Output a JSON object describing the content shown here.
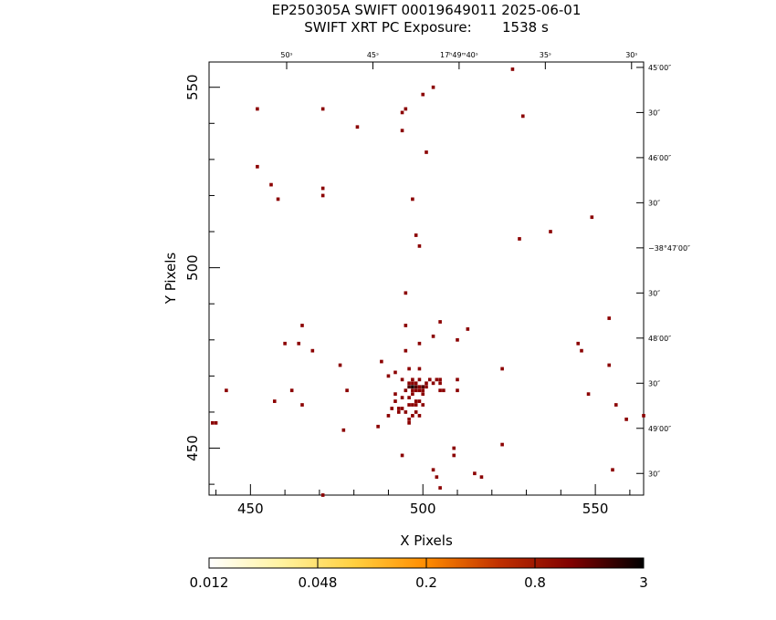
{
  "chart_data": {
    "type": "heatmap",
    "title": "EP250305A SWIFT 00019649011 2025-06-01",
    "subtitle": "SWIFT XRT PC Exposure:       1538 s",
    "xlabel": "X Pixels",
    "ylabel": "Y Pixels",
    "xlim": [
      438,
      564
    ],
    "ylim": [
      437,
      557
    ],
    "x_ticks": [
      450,
      500,
      550
    ],
    "y_ticks": [
      450,
      500,
      550
    ],
    "ra_axis_labels": [
      {
        "label": "50ˢ",
        "x": 460.5
      },
      {
        "label": "45ˢ",
        "x": 485.5
      },
      {
        "label": "17ʰ49ᵐ40ˢ",
        "x": 510.5
      },
      {
        "label": "35ˢ",
        "x": 535.5
      },
      {
        "label": "30ˢ",
        "x": 560.5
      }
    ],
    "dec_axis_labels": [
      {
        "label": "45′00″",
        "y": 555.5
      },
      {
        "label": "30″",
        "y": 543.0
      },
      {
        "label": "46′00″",
        "y": 530.5
      },
      {
        "label": "30″",
        "y": 518.0
      },
      {
        "label": "−38°47′00″",
        "y": 505.5
      },
      {
        "label": "30″",
        "y": 493.0
      },
      {
        "label": "48′00″",
        "y": 480.5
      },
      {
        "label": "30″",
        "y": 468.0
      },
      {
        "label": "49′00″",
        "y": 455.5
      },
      {
        "label": "30″",
        "y": 443.0
      }
    ],
    "colorbar": {
      "tick_labels": [
        "0.012",
        "0.048",
        "0.2",
        "0.8",
        "3"
      ],
      "colors": [
        "#ffffff",
        "#fff3a0",
        "#ffd040",
        "#ff8c00",
        "#c03000",
        "#800000",
        "#000000"
      ]
    },
    "pixel_colors": {
      "1": "#8b0000",
      "2": "#4d0000",
      "3": "#1a0000"
    },
    "pixels": [
      [
        526,
        555,
        1
      ],
      [
        503,
        550,
        1
      ],
      [
        500,
        548,
        1
      ],
      [
        452,
        544,
        1
      ],
      [
        471,
        544,
        1
      ],
      [
        495,
        544,
        1
      ],
      [
        494,
        543,
        1
      ],
      [
        529,
        542,
        1
      ],
      [
        481,
        539,
        1
      ],
      [
        494,
        538,
        1
      ],
      [
        501,
        532,
        1
      ],
      [
        452,
        528,
        1
      ],
      [
        456,
        523,
        1
      ],
      [
        471,
        522,
        1
      ],
      [
        471,
        520,
        1
      ],
      [
        458,
        519,
        1
      ],
      [
        497,
        519,
        1
      ],
      [
        537,
        510,
        1
      ],
      [
        528,
        508,
        1
      ],
      [
        498,
        509,
        1
      ],
      [
        499,
        506,
        1
      ],
      [
        549,
        514,
        1
      ],
      [
        495,
        493,
        1
      ],
      [
        505,
        485,
        1
      ],
      [
        495,
        484,
        1
      ],
      [
        465,
        484,
        1
      ],
      [
        513,
        483,
        1
      ],
      [
        554,
        486,
        1
      ],
      [
        503,
        481,
        1
      ],
      [
        499,
        479,
        1
      ],
      [
        460,
        479,
        1
      ],
      [
        464,
        479,
        1
      ],
      [
        510,
        480,
        1
      ],
      [
        545,
        479,
        1
      ],
      [
        546,
        477,
        1
      ],
      [
        468,
        477,
        1
      ],
      [
        495,
        477,
        1
      ],
      [
        488,
        474,
        1
      ],
      [
        476,
        473,
        1
      ],
      [
        554,
        473,
        1
      ],
      [
        523,
        472,
        1
      ],
      [
        492,
        471,
        1
      ],
      [
        496,
        472,
        1
      ],
      [
        499,
        472,
        1
      ],
      [
        490,
        470,
        1
      ],
      [
        494,
        469,
        1
      ],
      [
        497,
        469,
        1
      ],
      [
        499,
        469,
        1
      ],
      [
        502,
        469,
        1
      ],
      [
        504,
        469,
        1
      ],
      [
        505,
        469,
        1
      ],
      [
        510,
        469,
        1
      ],
      [
        496,
        468,
        1
      ],
      [
        497,
        468,
        1
      ],
      [
        498,
        468,
        1
      ],
      [
        501,
        468,
        1
      ],
      [
        503,
        468,
        1
      ],
      [
        505,
        468,
        1
      ],
      [
        496,
        467,
        2
      ],
      [
        497,
        467,
        3
      ],
      [
        498,
        467,
        2
      ],
      [
        499,
        467,
        1
      ],
      [
        500,
        467,
        2
      ],
      [
        501,
        467,
        1
      ],
      [
        443,
        466,
        1
      ],
      [
        462,
        466,
        1
      ],
      [
        478,
        466,
        1
      ],
      [
        495,
        466,
        1
      ],
      [
        497,
        466,
        1
      ],
      [
        498,
        466,
        1
      ],
      [
        499,
        466,
        1
      ],
      [
        500,
        466,
        1
      ],
      [
        505,
        466,
        1
      ],
      [
        506,
        466,
        1
      ],
      [
        510,
        466,
        1
      ],
      [
        492,
        465,
        1
      ],
      [
        496,
        464,
        1
      ],
      [
        497,
        465,
        1
      ],
      [
        500,
        465,
        1
      ],
      [
        548,
        465,
        1
      ],
      [
        494,
        464,
        1
      ],
      [
        492,
        463,
        1
      ],
      [
        498,
        463,
        1
      ],
      [
        499,
        463,
        1
      ],
      [
        457,
        463,
        1
      ],
      [
        465,
        462,
        1
      ],
      [
        556,
        462,
        1
      ],
      [
        491,
        461,
        1
      ],
      [
        493,
        461,
        1
      ],
      [
        496,
        462,
        1
      ],
      [
        497,
        462,
        1
      ],
      [
        498,
        462,
        1
      ],
      [
        500,
        462,
        1
      ],
      [
        493,
        460,
        1
      ],
      [
        494,
        461,
        1
      ],
      [
        495,
        460,
        1
      ],
      [
        498,
        460,
        1
      ],
      [
        490,
        459,
        1
      ],
      [
        497,
        459,
        1
      ],
      [
        499,
        459,
        1
      ],
      [
        496,
        458,
        1
      ],
      [
        564,
        459,
        1
      ],
      [
        559,
        458,
        1
      ],
      [
        439,
        457,
        1
      ],
      [
        440,
        457,
        1
      ],
      [
        496,
        457,
        1
      ],
      [
        487,
        456,
        1
      ],
      [
        477,
        455,
        1
      ],
      [
        523,
        451,
        1
      ],
      [
        509,
        450,
        1
      ],
      [
        509,
        448,
        1
      ],
      [
        494,
        448,
        1
      ],
      [
        555,
        444,
        1
      ],
      [
        503,
        444,
        1
      ],
      [
        515,
        443,
        1
      ],
      [
        504,
        442,
        1
      ],
      [
        517,
        442,
        1
      ],
      [
        505,
        439,
        1
      ],
      [
        471,
        437,
        1
      ]
    ]
  }
}
